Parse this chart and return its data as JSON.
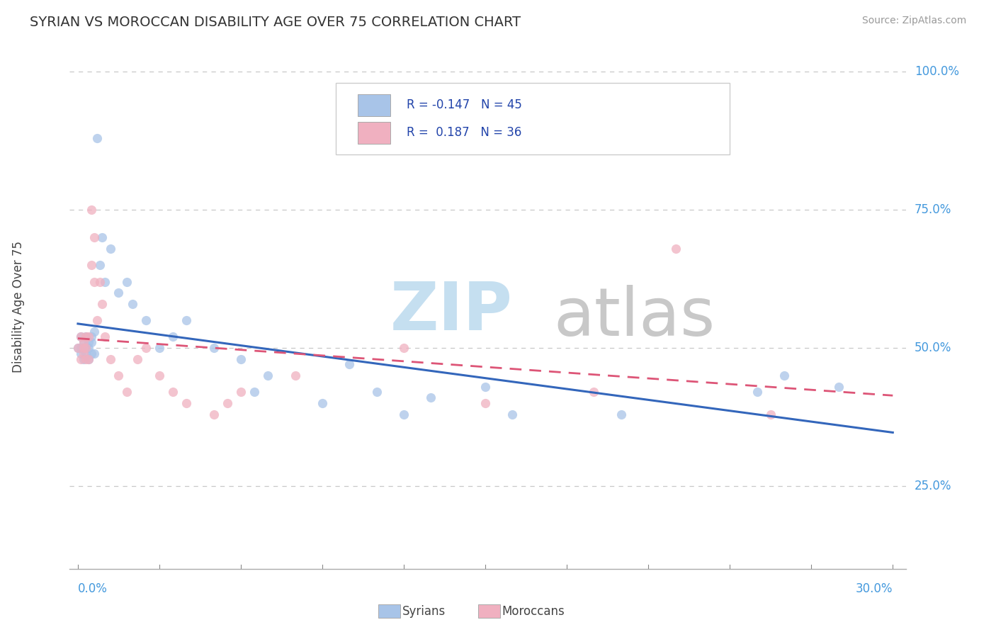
{
  "title": "SYRIAN VS MOROCCAN DISABILITY AGE OVER 75 CORRELATION CHART",
  "source": "Source: ZipAtlas.com",
  "ylabel": "Disability Age Over 75",
  "legend_R_syrian": "-0.147",
  "legend_N_syrian": "45",
  "legend_R_moroccan": "0.187",
  "legend_N_moroccan": "36",
  "syrian_color": "#a8c4e8",
  "moroccan_color": "#f0b0c0",
  "syrian_line_color": "#3366bb",
  "moroccan_line_color": "#dd5577",
  "x_min": 0.0,
  "x_max": 0.3,
  "y_min": 0.1,
  "y_max": 1.05,
  "y_ticks": [
    0.25,
    0.5,
    0.75,
    1.0
  ],
  "y_tick_labels": [
    "25.0%",
    "50.0%",
    "75.0%",
    "100.0%"
  ],
  "syrian_x": [
    0.0,
    0.001,
    0.001,
    0.001,
    0.002,
    0.002,
    0.002,
    0.003,
    0.003,
    0.003,
    0.004,
    0.004,
    0.004,
    0.005,
    0.005,
    0.005,
    0.006,
    0.006,
    0.007,
    0.008,
    0.009,
    0.01,
    0.012,
    0.015,
    0.018,
    0.02,
    0.025,
    0.03,
    0.035,
    0.04,
    0.05,
    0.06,
    0.065,
    0.07,
    0.09,
    0.1,
    0.11,
    0.12,
    0.13,
    0.15,
    0.16,
    0.2,
    0.25,
    0.26,
    0.28
  ],
  "syrian_y": [
    0.5,
    0.52,
    0.49,
    0.5,
    0.51,
    0.48,
    0.5,
    0.52,
    0.49,
    0.5,
    0.51,
    0.48,
    0.5,
    0.52,
    0.49,
    0.51,
    0.53,
    0.49,
    0.88,
    0.65,
    0.7,
    0.62,
    0.68,
    0.6,
    0.62,
    0.58,
    0.55,
    0.5,
    0.52,
    0.55,
    0.5,
    0.48,
    0.42,
    0.45,
    0.4,
    0.47,
    0.42,
    0.38,
    0.41,
    0.43,
    0.38,
    0.38,
    0.42,
    0.45,
    0.43
  ],
  "moroccan_x": [
    0.0,
    0.001,
    0.001,
    0.002,
    0.002,
    0.002,
    0.003,
    0.003,
    0.003,
    0.004,
    0.004,
    0.005,
    0.005,
    0.006,
    0.006,
    0.007,
    0.008,
    0.009,
    0.01,
    0.012,
    0.015,
    0.018,
    0.022,
    0.025,
    0.03,
    0.035,
    0.04,
    0.05,
    0.055,
    0.06,
    0.08,
    0.12,
    0.15,
    0.19,
    0.22,
    0.255
  ],
  "moroccan_y": [
    0.5,
    0.52,
    0.48,
    0.5,
    0.51,
    0.49,
    0.52,
    0.48,
    0.5,
    0.52,
    0.48,
    0.75,
    0.65,
    0.7,
    0.62,
    0.55,
    0.62,
    0.58,
    0.52,
    0.48,
    0.45,
    0.42,
    0.48,
    0.5,
    0.45,
    0.42,
    0.4,
    0.38,
    0.4,
    0.42,
    0.45,
    0.5,
    0.4,
    0.42,
    0.68,
    0.38
  ],
  "watermark_zip_color": "#c5dff0",
  "watermark_atlas_color": "#c8c8c8"
}
